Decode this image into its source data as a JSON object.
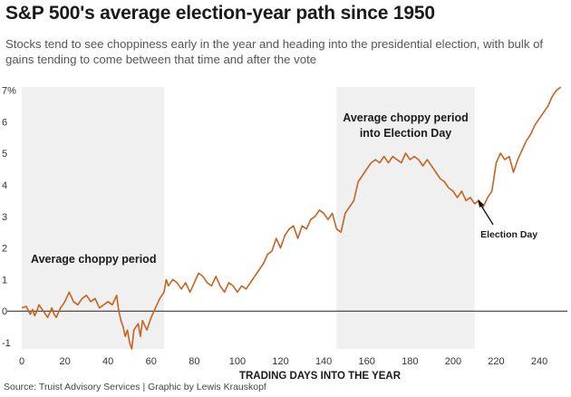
{
  "header": {
    "title": "S&P 500's average election-year path since 1950",
    "subtitle": "Stocks tend to see choppiness early in the year and heading into the presidential election, with bulk of gains tending to come between that time and after the vote"
  },
  "footer": {
    "source": "Source: Truist Advisory Services | Graphic by Lewis Krauskopf"
  },
  "colors": {
    "line": "#c8621e",
    "shade": "#f0f0f0",
    "zero_line": "#222222"
  },
  "chart_data": {
    "type": "line",
    "title": "S&P 500's average election-year path since 1950",
    "xlabel": "TRADING DAYS INTO THE YEAR",
    "ylabel": "",
    "xlim": [
      0,
      253
    ],
    "ylim": [
      -1.2,
      7.1
    ],
    "x_ticks": [
      0,
      20,
      40,
      60,
      80,
      100,
      120,
      140,
      160,
      180,
      200,
      220,
      240
    ],
    "y_ticks": [
      {
        "value": -1,
        "label": "-1"
      },
      {
        "value": 0,
        "label": "0"
      },
      {
        "value": 1,
        "label": "1"
      },
      {
        "value": 2,
        "label": "2"
      },
      {
        "value": 3,
        "label": "3"
      },
      {
        "value": 4,
        "label": "4"
      },
      {
        "value": 5,
        "label": "5"
      },
      {
        "value": 6,
        "label": "6"
      },
      {
        "value": 7,
        "label": "7%"
      }
    ],
    "grid": false,
    "shaded_regions": [
      {
        "x_start": 0,
        "x_end": 66,
        "label": "Average choppy period"
      },
      {
        "x_start": 146,
        "x_end": 210,
        "label_lines": [
          "Average choppy period",
          "into Election Day"
        ]
      }
    ],
    "annotations": [
      {
        "text": "Election Day",
        "x": 211,
        "y": 3.6
      }
    ],
    "series": [
      {
        "x": [
          0,
          2,
          4,
          5,
          6,
          7,
          8,
          10,
          12,
          14,
          15,
          16,
          18,
          20,
          22,
          24,
          26,
          28,
          30,
          32,
          34,
          36,
          38,
          40,
          42,
          44,
          45,
          46,
          47,
          48,
          49,
          50,
          51,
          52,
          54,
          55,
          56,
          58,
          60,
          62,
          64,
          66,
          67,
          68,
          70,
          72,
          74,
          76,
          78,
          80,
          82,
          84,
          86,
          88,
          90,
          92,
          94,
          96,
          98,
          100,
          102,
          104,
          106,
          108,
          110,
          112,
          114,
          116,
          118,
          120,
          122,
          124,
          126,
          128,
          130,
          132,
          134,
          136,
          138,
          140,
          142,
          144,
          146,
          148,
          150,
          152,
          154,
          156,
          158,
          160,
          162,
          164,
          166,
          168,
          170,
          172,
          174,
          176,
          178,
          180,
          182,
          184,
          186,
          188,
          190,
          192,
          194,
          196,
          198,
          200,
          202,
          204,
          206,
          208,
          210,
          212,
          214,
          216,
          218,
          220,
          222,
          224,
          226,
          228,
          230,
          232,
          234,
          236,
          238,
          240,
          242,
          244,
          246,
          248,
          250
        ],
        "y": [
          0.1,
          0.15,
          -0.1,
          0.05,
          -0.15,
          0.0,
          0.2,
          0.0,
          -0.2,
          0.1,
          -0.1,
          -0.2,
          0.1,
          0.3,
          0.6,
          0.3,
          0.2,
          0.4,
          0.5,
          0.3,
          0.4,
          0.1,
          0.2,
          0.3,
          0.2,
          0.5,
          0.0,
          -0.3,
          -0.5,
          -0.8,
          -0.6,
          -1.0,
          -1.2,
          -0.6,
          -0.4,
          -0.8,
          -0.3,
          -0.6,
          -0.2,
          0.1,
          0.4,
          0.6,
          1.0,
          0.8,
          1.0,
          0.9,
          0.7,
          0.9,
          0.6,
          0.9,
          1.2,
          1.1,
          0.9,
          0.8,
          1.1,
          0.8,
          0.6,
          0.9,
          0.8,
          0.6,
          0.8,
          0.7,
          0.9,
          1.1,
          1.3,
          1.5,
          1.8,
          1.9,
          2.3,
          2.0,
          2.4,
          2.6,
          2.7,
          2.3,
          2.7,
          2.6,
          2.9,
          3.0,
          3.2,
          3.1,
          2.9,
          3.1,
          2.6,
          2.5,
          3.1,
          3.3,
          3.5,
          4.1,
          4.3,
          4.5,
          4.7,
          4.8,
          4.7,
          4.9,
          4.7,
          4.9,
          4.8,
          4.7,
          5.0,
          4.8,
          4.9,
          4.8,
          4.6,
          4.8,
          4.6,
          4.4,
          4.2,
          4.1,
          3.9,
          3.8,
          3.6,
          3.8,
          3.5,
          3.6,
          3.4,
          3.5,
          3.3,
          3.6,
          3.8,
          4.7,
          5.0,
          4.8,
          4.9,
          4.4,
          4.8,
          5.1,
          5.4,
          5.6,
          5.9,
          6.1,
          6.3,
          6.5,
          6.8,
          7.0,
          7.1
        ]
      }
    ]
  }
}
